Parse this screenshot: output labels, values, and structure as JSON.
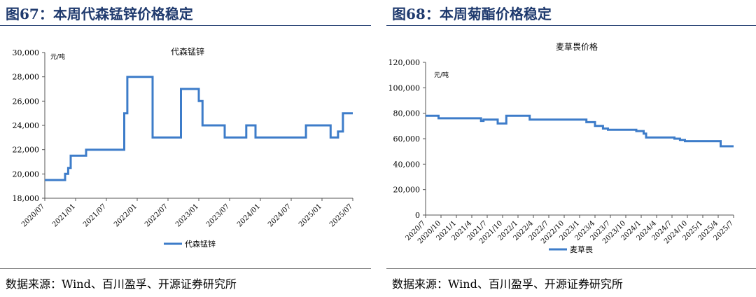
{
  "panels": [
    {
      "figure_title": "图67：本周代森锰锌价格稳定",
      "source": "数据来源：Wind、百川盈孚、开源证券研究所",
      "chart_data": {
        "type": "line",
        "title": "代森锰锌",
        "unit_label": "元/吨",
        "color": "#3d7cc9",
        "legend_position": "bottom",
        "ylim": [
          18000,
          30000
        ],
        "yticks": [
          18000,
          20000,
          22000,
          24000,
          26000,
          28000,
          30000
        ],
        "ytick_labels": [
          "18,000",
          "20,000",
          "22,000",
          "24,000",
          "26,000",
          "28,000",
          "30,000"
        ],
        "xlim": [
          2020.5,
          2025.5
        ],
        "xticks": [
          2020.5,
          2021.0,
          2021.5,
          2022.0,
          2022.5,
          2023.0,
          2023.5,
          2024.0,
          2024.5,
          2025.0,
          2025.5
        ],
        "xtick_labels": [
          "2020/07",
          "2021/01",
          "2021/07",
          "2022/01",
          "2022/07",
          "2023/01",
          "2023/07",
          "2024/01",
          "2024/07",
          "2025/01",
          "2025/07"
        ],
        "series": [
          {
            "name": "代森锰锌",
            "x": [
              2020.5,
              2020.83,
              2020.83,
              2020.88,
              2020.88,
              2020.92,
              2020.92,
              2021.17,
              2021.17,
              2021.79,
              2021.79,
              2021.84,
              2021.84,
              2022.25,
              2022.25,
              2022.71,
              2022.71,
              2023.0,
              2023.0,
              2023.06,
              2023.06,
              2023.42,
              2023.42,
              2023.77,
              2023.77,
              2023.92,
              2023.92,
              2024.74,
              2024.74,
              2025.14,
              2025.14,
              2025.26,
              2025.26,
              2025.34,
              2025.34,
              2025.5
            ],
            "y": [
              19500,
              19500,
              20000,
              20000,
              20500,
              20500,
              21500,
              21500,
              22000,
              22000,
              25000,
              25000,
              28000,
              28000,
              23000,
              23000,
              27000,
              27000,
              26000,
              26000,
              24000,
              24000,
              23000,
              23000,
              24000,
              24000,
              23000,
              23000,
              24000,
              24000,
              23000,
              23000,
              23500,
              23500,
              25000,
              25000
            ]
          }
        ]
      }
    },
    {
      "figure_title": "图68：本周菊酯价格稳定",
      "source": "数据来源：Wind、百川盈孚、开源证券研究所",
      "chart_data": {
        "type": "line",
        "title": "麦草畏价格",
        "unit_label": "元/吨",
        "color": "#3d7cc9",
        "legend_position": "bottom",
        "ylim": [
          0,
          120000
        ],
        "yticks": [
          0,
          20000,
          40000,
          60000,
          80000,
          100000,
          120000
        ],
        "ytick_labels": [
          "0",
          "20,000",
          "40,000",
          "60,000",
          "80,000",
          "100,000",
          "120,000"
        ],
        "xlim": [
          2020.5,
          2025.5
        ],
        "xticks": [
          2020.5,
          2020.75,
          2021.0,
          2021.25,
          2021.5,
          2021.75,
          2022.0,
          2022.25,
          2022.5,
          2022.75,
          2023.0,
          2023.25,
          2023.5,
          2023.75,
          2024.0,
          2024.25,
          2024.5,
          2024.75,
          2025.0,
          2025.25,
          2025.5
        ],
        "xtick_labels": [
          "2020/7",
          "2020/10",
          "2021/1",
          "2021/4",
          "2021/7",
          "2021/10",
          "2022/1",
          "2022/4",
          "2022/7",
          "2022/10",
          "2023/1",
          "2023/4",
          "2023/7",
          "2023/10",
          "2024/1",
          "2024/4",
          "2024/7",
          "2024/10",
          "2025/1",
          "2025/4",
          "2025/7"
        ],
        "series": [
          {
            "name": "麦草畏",
            "x": [
              2020.5,
              2020.71,
              2020.71,
              2021.4,
              2021.4,
              2021.44,
              2021.44,
              2021.67,
              2021.67,
              2021.81,
              2021.81,
              2022.19,
              2022.19,
              2023.11,
              2023.11,
              2023.25,
              2023.25,
              2023.38,
              2023.38,
              2023.46,
              2023.46,
              2023.92,
              2023.92,
              2024.04,
              2024.04,
              2024.08,
              2024.08,
              2024.54,
              2024.54,
              2024.63,
              2024.63,
              2024.71,
              2024.71,
              2025.29,
              2025.29,
              2025.5
            ],
            "y": [
              78000,
              78000,
              76000,
              76000,
              74000,
              74000,
              75000,
              75000,
              72000,
              72000,
              78000,
              78000,
              75000,
              75000,
              73000,
              73000,
              70000,
              70000,
              68000,
              68000,
              67000,
              67000,
              66000,
              66000,
              64000,
              64000,
              61000,
              61000,
              60000,
              60000,
              59000,
              59000,
              58000,
              58000,
              54000,
              54000
            ]
          }
        ]
      }
    }
  ]
}
